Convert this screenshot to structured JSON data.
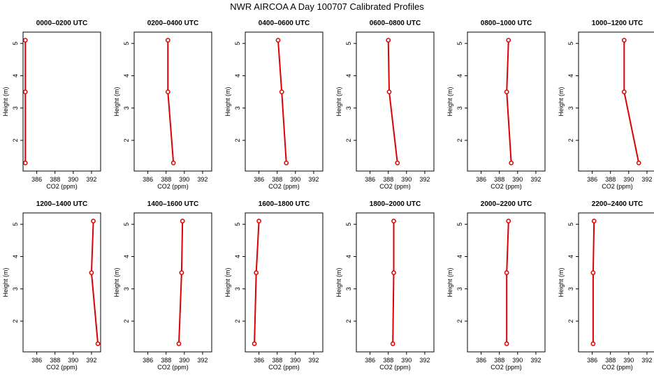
{
  "title": "NWR AIRCOA A  Day 100707  Calibrated Profiles",
  "chart_data": {
    "type": "line",
    "layout": "2x6 grid",
    "xlabel": "CO2 (ppm)",
    "ylabel": "Height (m)",
    "xlim": [
      384.5,
      393.0
    ],
    "ylim": [
      1.05,
      5.35
    ],
    "x_ticks": [
      "386",
      "388",
      "390",
      "392"
    ],
    "y_ticks": [
      "2",
      "3",
      "4",
      "5"
    ],
    "line_color": "#dd0000",
    "grid": false,
    "panels": [
      {
        "title": "0000–0200 UTC",
        "points": [
          {
            "x": 384.75,
            "y": 5.1
          },
          {
            "x": 384.75,
            "y": 3.5
          },
          {
            "x": 384.75,
            "y": 1.3
          }
        ]
      },
      {
        "title": "0200–0400 UTC",
        "points": [
          {
            "x": 388.2,
            "y": 5.1
          },
          {
            "x": 388.2,
            "y": 3.5
          },
          {
            "x": 388.8,
            "y": 1.3
          }
        ]
      },
      {
        "title": "0400–0600 UTC",
        "points": [
          {
            "x": 388.1,
            "y": 5.1
          },
          {
            "x": 388.5,
            "y": 3.5
          },
          {
            "x": 389.0,
            "y": 1.3
          }
        ]
      },
      {
        "title": "0600–0800 UTC",
        "points": [
          {
            "x": 388.0,
            "y": 5.1
          },
          {
            "x": 388.1,
            "y": 3.5
          },
          {
            "x": 389.0,
            "y": 1.3
          }
        ]
      },
      {
        "title": "0800–1000 UTC",
        "points": [
          {
            "x": 389.0,
            "y": 5.1
          },
          {
            "x": 388.8,
            "y": 3.5
          },
          {
            "x": 389.3,
            "y": 1.3
          }
        ]
      },
      {
        "title": "1000–1200 UTC",
        "points": [
          {
            "x": 389.5,
            "y": 5.1
          },
          {
            "x": 389.5,
            "y": 3.5
          },
          {
            "x": 391.1,
            "y": 1.3
          }
        ]
      },
      {
        "title": "1200–1400 UTC",
        "points": [
          {
            "x": 392.2,
            "y": 5.1
          },
          {
            "x": 392.0,
            "y": 3.5
          },
          {
            "x": 392.7,
            "y": 1.3
          }
        ]
      },
      {
        "title": "1400–1600 UTC",
        "points": [
          {
            "x": 389.8,
            "y": 5.1
          },
          {
            "x": 389.7,
            "y": 3.5
          },
          {
            "x": 389.4,
            "y": 1.3
          }
        ]
      },
      {
        "title": "1600–1800 UTC",
        "points": [
          {
            "x": 386.0,
            "y": 5.1
          },
          {
            "x": 385.7,
            "y": 3.5
          },
          {
            "x": 385.5,
            "y": 1.3
          }
        ]
      },
      {
        "title": "1800–2000 UTC",
        "points": [
          {
            "x": 388.6,
            "y": 5.1
          },
          {
            "x": 388.6,
            "y": 3.5
          },
          {
            "x": 388.5,
            "y": 1.3
          }
        ]
      },
      {
        "title": "2000–2200 UTC",
        "points": [
          {
            "x": 389.0,
            "y": 5.1
          },
          {
            "x": 388.8,
            "y": 3.5
          },
          {
            "x": 388.8,
            "y": 1.3
          }
        ]
      },
      {
        "title": "2200–2400 UTC",
        "points": [
          {
            "x": 386.2,
            "y": 5.1
          },
          {
            "x": 386.1,
            "y": 3.5
          },
          {
            "x": 386.1,
            "y": 1.3
          }
        ]
      }
    ]
  }
}
